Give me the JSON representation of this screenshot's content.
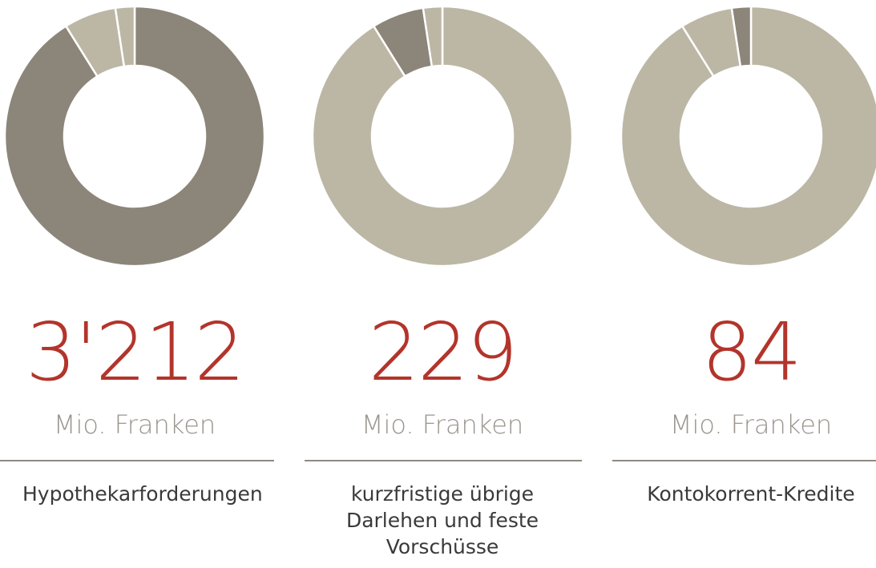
{
  "chart_data": [
    {
      "type": "donut",
      "values": [
        3212,
        229,
        84
      ],
      "highlight": 0,
      "colors": [
        "#bcb7a5",
        "#8c8579"
      ],
      "value_label": "3'212",
      "unit": "Mio. Franken",
      "label": "Hypothekarforderungen"
    },
    {
      "type": "donut",
      "values": [
        3212,
        229,
        84
      ],
      "highlight": 1,
      "colors": [
        "#bcb7a5",
        "#8c8579"
      ],
      "value_label": "229",
      "unit": "Mio. Franken",
      "label": "kurzfristige übrige Darlehen und feste Vorschüsse"
    },
    {
      "type": "donut",
      "values": [
        3212,
        229,
        84
      ],
      "highlight": 2,
      "colors": [
        "#bcb7a5",
        "#8c8579"
      ],
      "value_label": "84",
      "unit": "Mio. Franken",
      "label": "Kontokorrent-Kredite"
    }
  ]
}
